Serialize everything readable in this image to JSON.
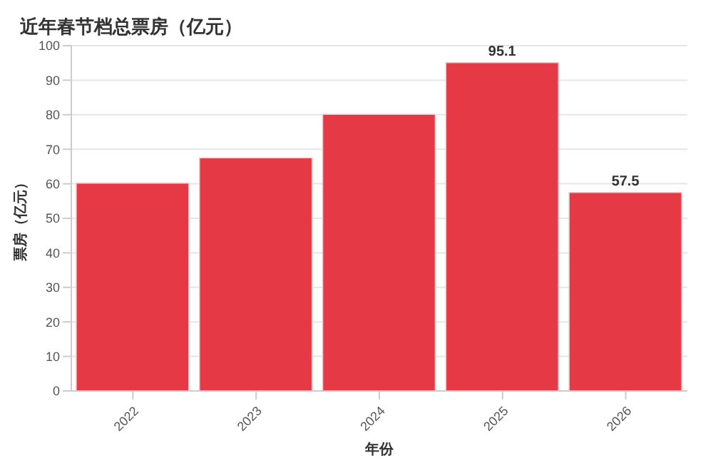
{
  "chart_data": {
    "type": "bar",
    "title": "近年春节档总票房（亿元）",
    "xlabel": "年份",
    "ylabel": "票房（亿元）",
    "categories": [
      "2022",
      "2023",
      "2024",
      "2025",
      "2026"
    ],
    "values": [
      60.2,
      67.5,
      80.1,
      95.1,
      57.5
    ],
    "value_labels": [
      null,
      null,
      null,
      "95.1",
      "57.5"
    ],
    "color": "#e63946",
    "ylim": [
      0,
      100
    ],
    "yticks": [
      0,
      10,
      20,
      30,
      40,
      50,
      60,
      70,
      80,
      90,
      100
    ],
    "grid": "y"
  }
}
